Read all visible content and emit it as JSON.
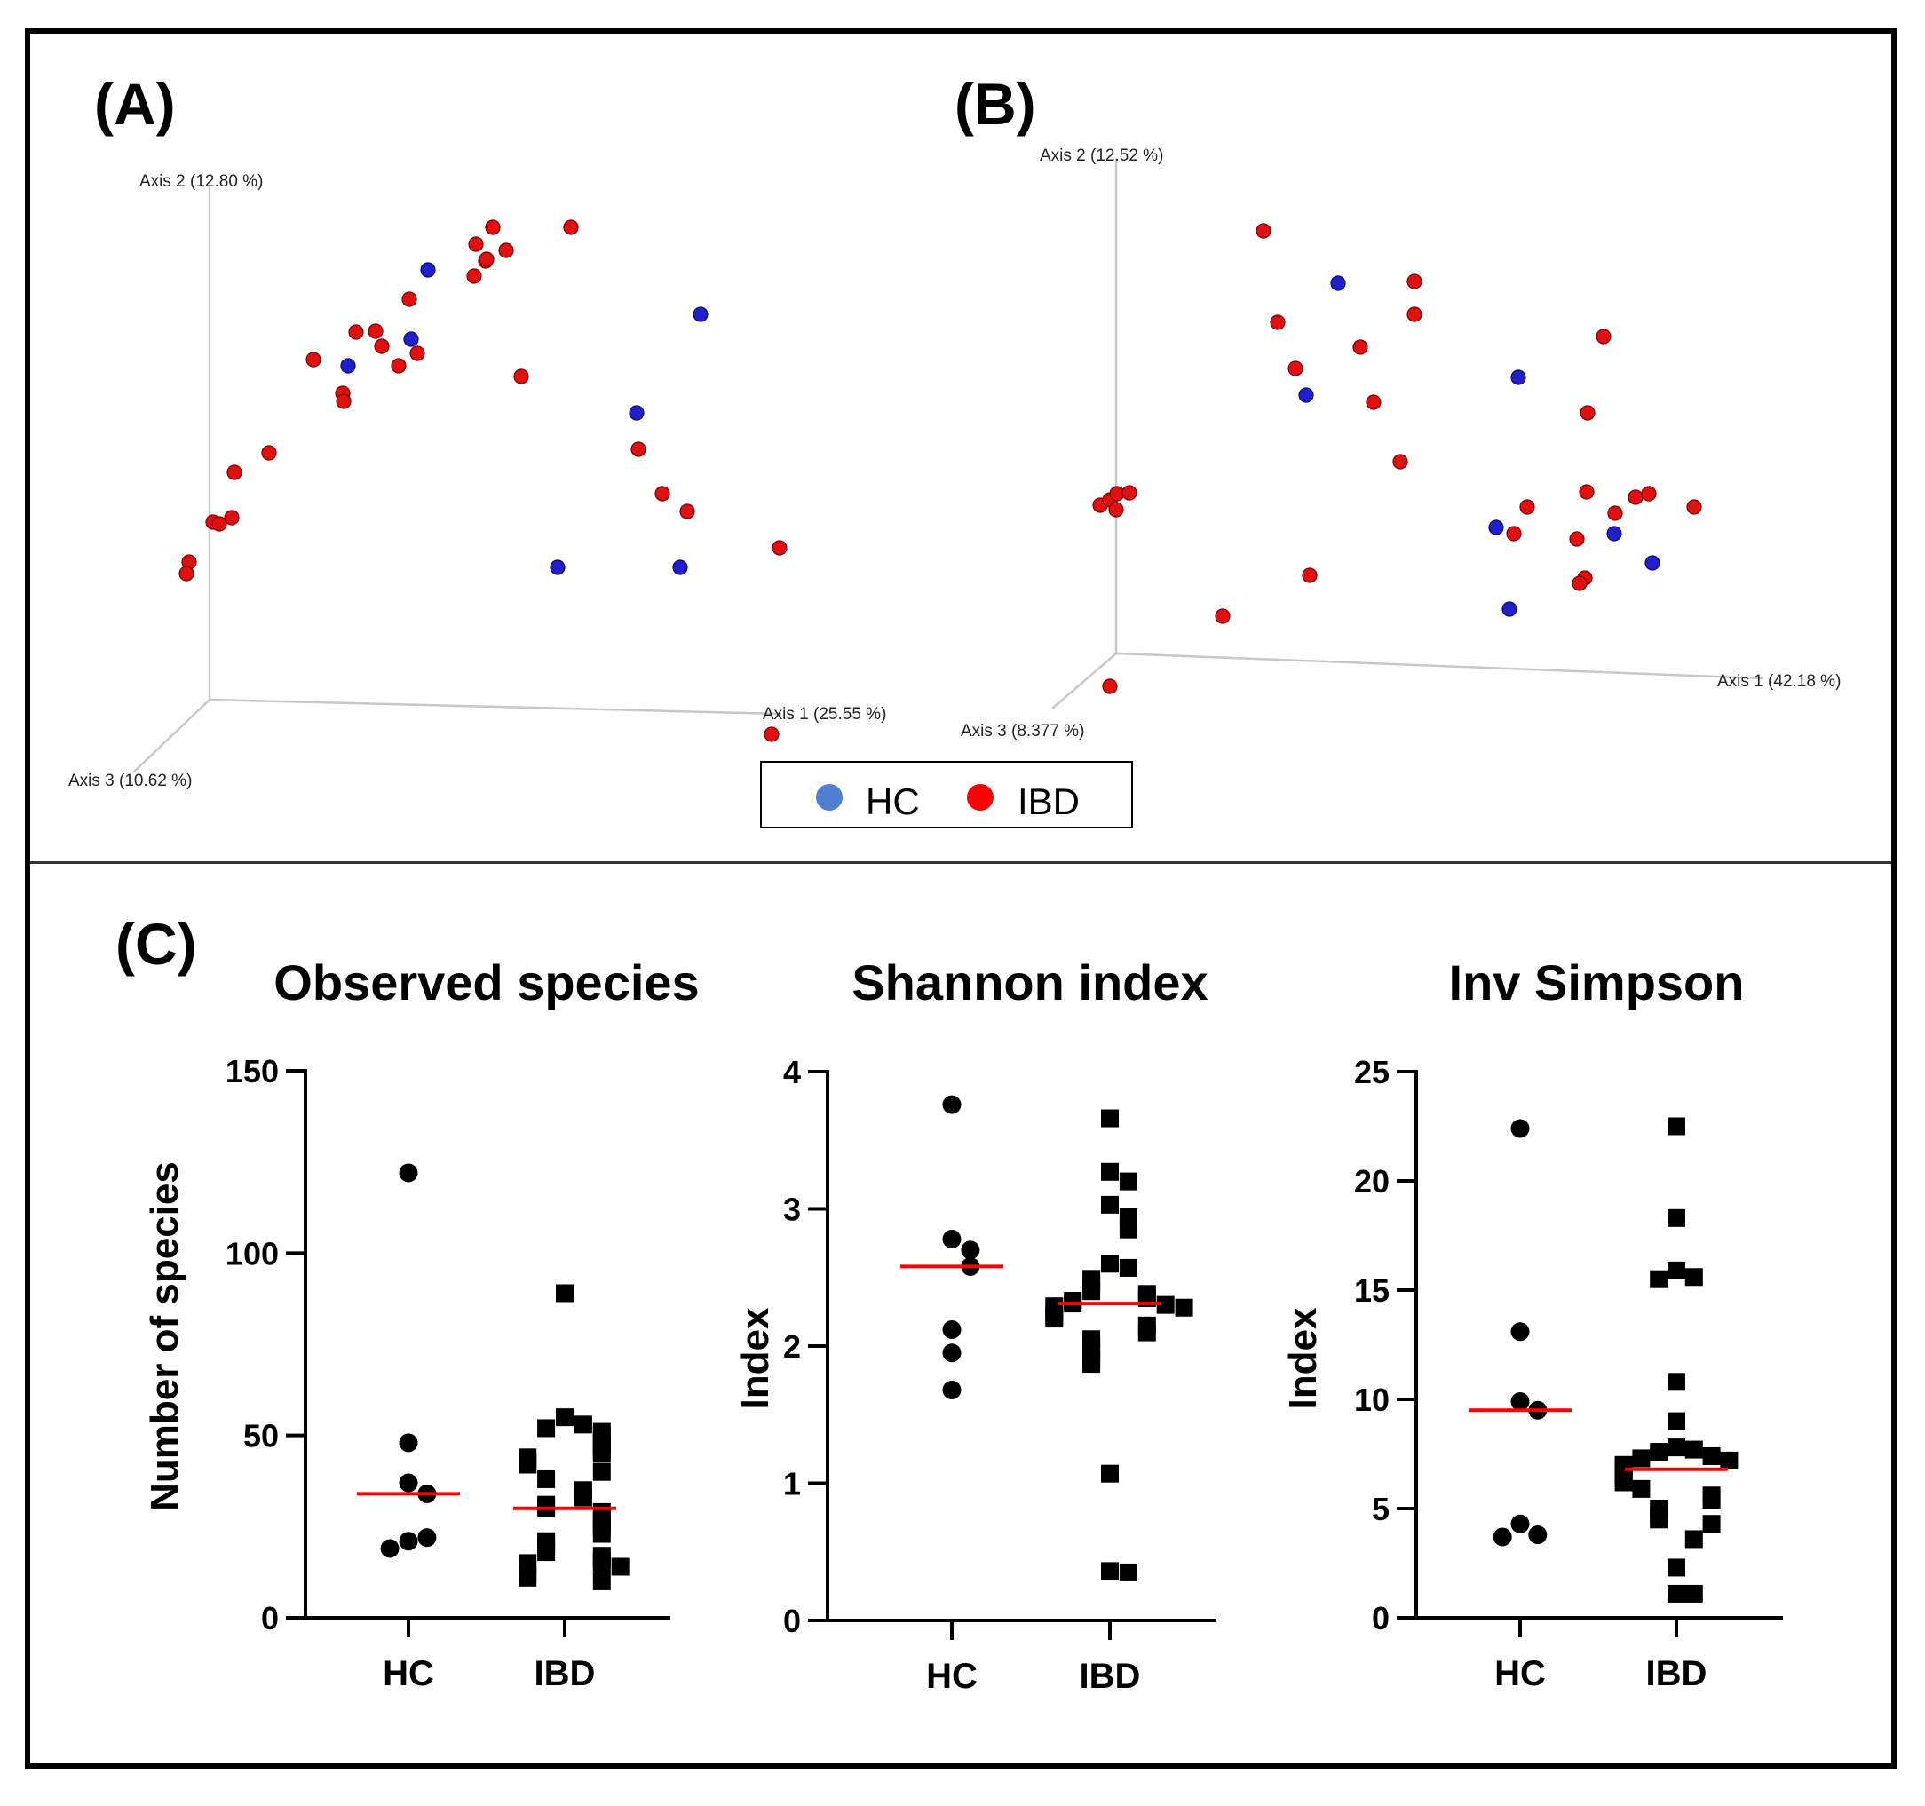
{
  "colors": {
    "hc": "#1f1fcc",
    "ibd": "#e01010",
    "hc_legend": "#4f7fd0",
    "ibd_legend": "#ff0000",
    "median": "#ff0000"
  },
  "panels": {
    "a": "(A)",
    "b": "(B)",
    "c": "(C)"
  },
  "legend": {
    "hc": "HC",
    "ibd": "IBD"
  },
  "chart_data": [
    {
      "type": "scatter",
      "projection": "3d",
      "title": "(A)",
      "axis1_label": "Axis 1 (25.55 %)",
      "axis2_label": "Axis 2 (12.80 %)",
      "axis3_label": "Axis 3 (10.62 %)",
      "note": "Point values are projected screen coordinates in the rendered 3D view (per-axis PCoA values not recoverable).",
      "series": [
        {
          "name": "HC",
          "points": [
            [
              482,
              304
            ],
            [
              463,
              382
            ],
            [
              392,
              412
            ],
            [
              789,
              354
            ],
            [
              717,
              465
            ],
            [
              628,
              639
            ],
            [
              766,
              639
            ]
          ]
        },
        {
          "name": "IBD",
          "points": [
            [
              555,
              256
            ],
            [
              643,
              256
            ],
            [
              536,
              275
            ],
            [
              570,
              282
            ],
            [
              547,
              294
            ],
            [
              461,
              337
            ],
            [
              534,
              311
            ],
            [
              548,
              292
            ],
            [
              353,
              405
            ],
            [
              401,
              374
            ],
            [
              423,
              373
            ],
            [
              430,
              390
            ],
            [
              470,
              398
            ],
            [
              449,
              412
            ],
            [
              386,
              443
            ],
            [
              387,
              452
            ],
            [
              587,
              424
            ],
            [
              303,
              510
            ],
            [
              264,
              532
            ],
            [
              240,
              588
            ],
            [
              247,
              590
            ],
            [
              261,
              583
            ],
            [
              213,
              633
            ],
            [
              210,
              646
            ],
            [
              719,
              506
            ],
            [
              746,
              556
            ],
            [
              774,
              576
            ],
            [
              878,
              617
            ],
            [
              869,
              827
            ]
          ]
        }
      ]
    },
    {
      "type": "scatter",
      "projection": "3d",
      "title": "(B)",
      "axis1_label": "Axis 1 (42.18 %)",
      "axis2_label": "Axis 2 (12.52 %)",
      "axis3_label": "Axis 3 (8.377 %)",
      "note": "Point values are projected screen coordinates in the rendered 3D view (per-axis PCoA values not recoverable).",
      "series": [
        {
          "name": "HC",
          "points": [
            [
              1507,
              319
            ],
            [
              1471,
              445
            ],
            [
              1710,
              425
            ],
            [
              1685,
              594
            ],
            [
              1818,
              601
            ],
            [
              1861,
              634
            ],
            [
              1700,
              686
            ]
          ]
        },
        {
          "name": "IBD",
          "points": [
            [
              1423,
              260
            ],
            [
              1593,
              317
            ],
            [
              1593,
              354
            ],
            [
              1439,
              363
            ],
            [
              1532,
              391
            ],
            [
              1459,
              415
            ],
            [
              1806,
              379
            ],
            [
              1788,
              465
            ],
            [
              1547,
              453
            ],
            [
              1577,
              520
            ],
            [
              1239,
              569
            ],
            [
              1250,
              563
            ],
            [
              1258,
              556
            ],
            [
              1272,
              555
            ],
            [
              1257,
              574
            ],
            [
              1720,
              571
            ],
            [
              1705,
              601
            ],
            [
              1787,
              554
            ],
            [
              1776,
              607
            ],
            [
              1819,
              578
            ],
            [
              1842,
              560
            ],
            [
              1857,
              556
            ],
            [
              1908,
              571
            ],
            [
              1785,
              651
            ],
            [
              1779,
              657
            ],
            [
              1475,
              648
            ],
            [
              1377,
              694
            ],
            [
              1250,
              773
            ]
          ]
        }
      ]
    },
    {
      "type": "scatter",
      "title": "Observed species",
      "xlabel": "",
      "ylabel": "Number of species",
      "categories": [
        "HC",
        "IBD"
      ],
      "yticks": [
        "0",
        "50",
        "100",
        "150"
      ],
      "ylim": [
        0,
        150
      ],
      "series": [
        {
          "name": "HC",
          "marker": "circle",
          "median": 34,
          "values": [
            122,
            48,
            37,
            34,
            21,
            22,
            19
          ]
        },
        {
          "name": "IBD",
          "marker": "square",
          "median": 30,
          "values": [
            89,
            55,
            53,
            52,
            51,
            50,
            48,
            47,
            46,
            45,
            44,
            43,
            42,
            40,
            38,
            35,
            33,
            31,
            30,
            29,
            27,
            26,
            25,
            23,
            21,
            20,
            18,
            17,
            16,
            15,
            15,
            14,
            12,
            11,
            10
          ]
        }
      ]
    },
    {
      "type": "scatter",
      "title": "Shannon index",
      "xlabel": "",
      "ylabel": "Index",
      "categories": [
        "HC",
        "IBD"
      ],
      "yticks": [
        "0",
        "1",
        "2",
        "3",
        "4"
      ],
      "ylim": [
        0,
        4
      ],
      "series": [
        {
          "name": "HC",
          "marker": "circle",
          "median": 2.58,
          "values": [
            3.76,
            2.78,
            2.7,
            2.58,
            2.12,
            1.95,
            1.68
          ]
        },
        {
          "name": "IBD",
          "marker": "square",
          "median": 2.31,
          "values": [
            3.66,
            3.27,
            3.2,
            3.03,
            2.94,
            2.85,
            2.6,
            2.57,
            2.49,
            2.45,
            2.4,
            2.38,
            2.35,
            2.33,
            2.31,
            2.3,
            2.29,
            2.28,
            2.25,
            2.22,
            2.2,
            2.15,
            2.1,
            2.05,
            2.0,
            1.96,
            1.9,
            1.87,
            1.07,
            0.36,
            0.35
          ]
        }
      ]
    },
    {
      "type": "scatter",
      "title": "Inv Simpson",
      "xlabel": "",
      "ylabel": "Index",
      "categories": [
        "HC",
        "IBD"
      ],
      "yticks": [
        "0",
        "5",
        "10",
        "15",
        "20",
        "25"
      ],
      "ylim": [
        0,
        25
      ],
      "series": [
        {
          "name": "HC",
          "marker": "circle",
          "median": 9.5,
          "values": [
            22.4,
            13.1,
            9.9,
            9.5,
            4.3,
            3.8,
            3.7
          ]
        },
        {
          "name": "IBD",
          "marker": "square",
          "median": 6.8,
          "values": [
            22.5,
            18.3,
            15.9,
            15.6,
            15.5,
            10.8,
            9.0,
            7.8,
            7.7,
            7.6,
            7.4,
            7.3,
            7.2,
            7.0,
            6.9,
            6.8,
            6.6,
            6.5,
            6.4,
            6.2,
            5.9,
            5.6,
            5.4,
            5.0,
            4.7,
            4.5,
            4.3,
            3.6,
            2.3,
            1.1,
            1.1
          ]
        }
      ]
    }
  ]
}
